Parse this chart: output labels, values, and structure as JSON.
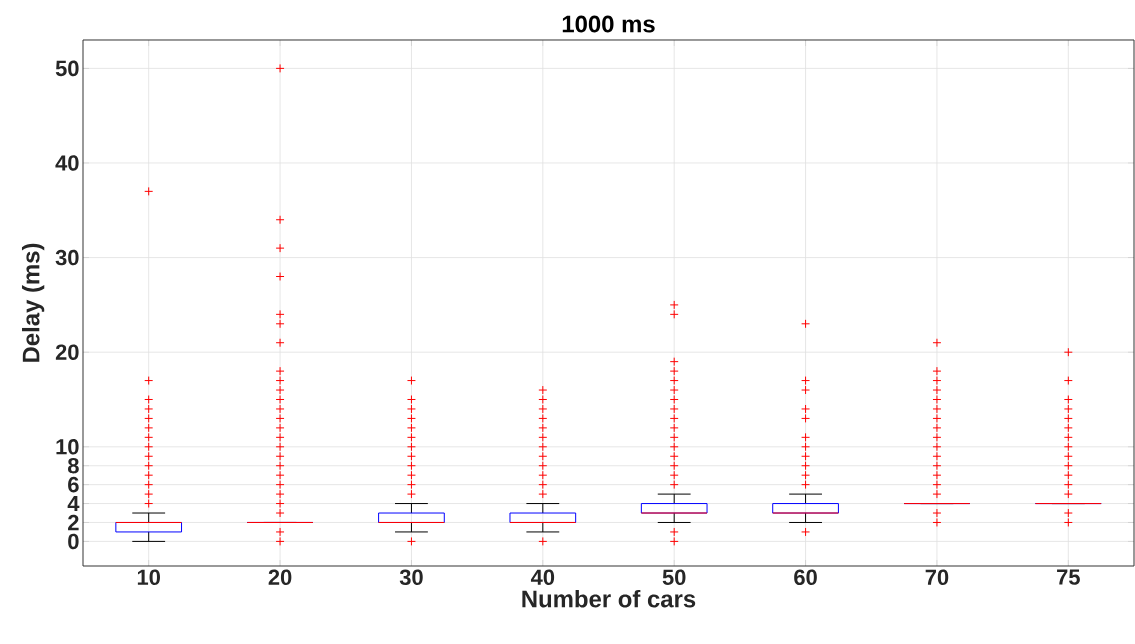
{
  "chart_data": {
    "type": "box",
    "title": "1000 ms",
    "xlabel": "Number of cars",
    "ylabel": "Delay (ms)",
    "categories": [
      "10",
      "20",
      "30",
      "40",
      "50",
      "60",
      "70",
      "75"
    ],
    "color": "#0000ff",
    "boxes": [
      {
        "low": 0,
        "q1": 1,
        "median": 2,
        "q3": 2,
        "high": 3,
        "outliers": [
          4,
          5,
          6,
          7,
          8,
          9,
          10,
          11,
          12,
          13,
          14,
          15,
          17,
          37
        ]
      },
      {
        "low": 2,
        "q1": 2,
        "median": 2,
        "q3": 2,
        "high": 2,
        "outliers": [
          0,
          1,
          3,
          4,
          5,
          6,
          7,
          8,
          9,
          10,
          11,
          12,
          13,
          14,
          15,
          16,
          17,
          18,
          21,
          23,
          24,
          28,
          31,
          34,
          50
        ]
      },
      {
        "low": 1,
        "q1": 2,
        "median": 2,
        "q3": 3,
        "high": 4,
        "outliers": [
          0,
          5,
          6,
          7,
          8,
          9,
          10,
          11,
          12,
          13,
          14,
          15,
          17
        ]
      },
      {
        "low": 1,
        "q1": 2,
        "median": 2,
        "q3": 3,
        "high": 4,
        "outliers": [
          0,
          5,
          6,
          7,
          8,
          9,
          10,
          11,
          12,
          13,
          14,
          15,
          16
        ]
      },
      {
        "low": 2,
        "q1": 3,
        "median": 3,
        "q3": 4,
        "high": 5,
        "outliers": [
          0,
          1,
          6,
          7,
          8,
          9,
          10,
          11,
          12,
          13,
          14,
          15,
          16,
          17,
          18,
          19,
          24,
          25
        ]
      },
      {
        "low": 2,
        "q1": 3,
        "median": 3,
        "q3": 4,
        "high": 5,
        "outliers": [
          1,
          6,
          7,
          8,
          9,
          10,
          11,
          13,
          14,
          16,
          17,
          23
        ]
      },
      {
        "low": 4,
        "q1": 4,
        "median": 4,
        "q3": 4,
        "high": 4,
        "outliers": [
          2,
          3,
          5,
          6,
          7,
          8,
          9,
          10,
          11,
          12,
          13,
          14,
          15,
          16,
          17,
          18,
          21
        ]
      },
      {
        "low": 4,
        "q1": 4,
        "median": 4,
        "q3": 4,
        "high": 4,
        "outliers": [
          2,
          3,
          5,
          6,
          7,
          8,
          9,
          10,
          11,
          12,
          13,
          14,
          15,
          17,
          20
        ]
      }
    ],
    "ylim": [
      -2.6,
      53
    ],
    "yticks": [
      0,
      2,
      4,
      6,
      8,
      10,
      20,
      30,
      40,
      50
    ],
    "grid": true,
    "marker": "cross"
  }
}
